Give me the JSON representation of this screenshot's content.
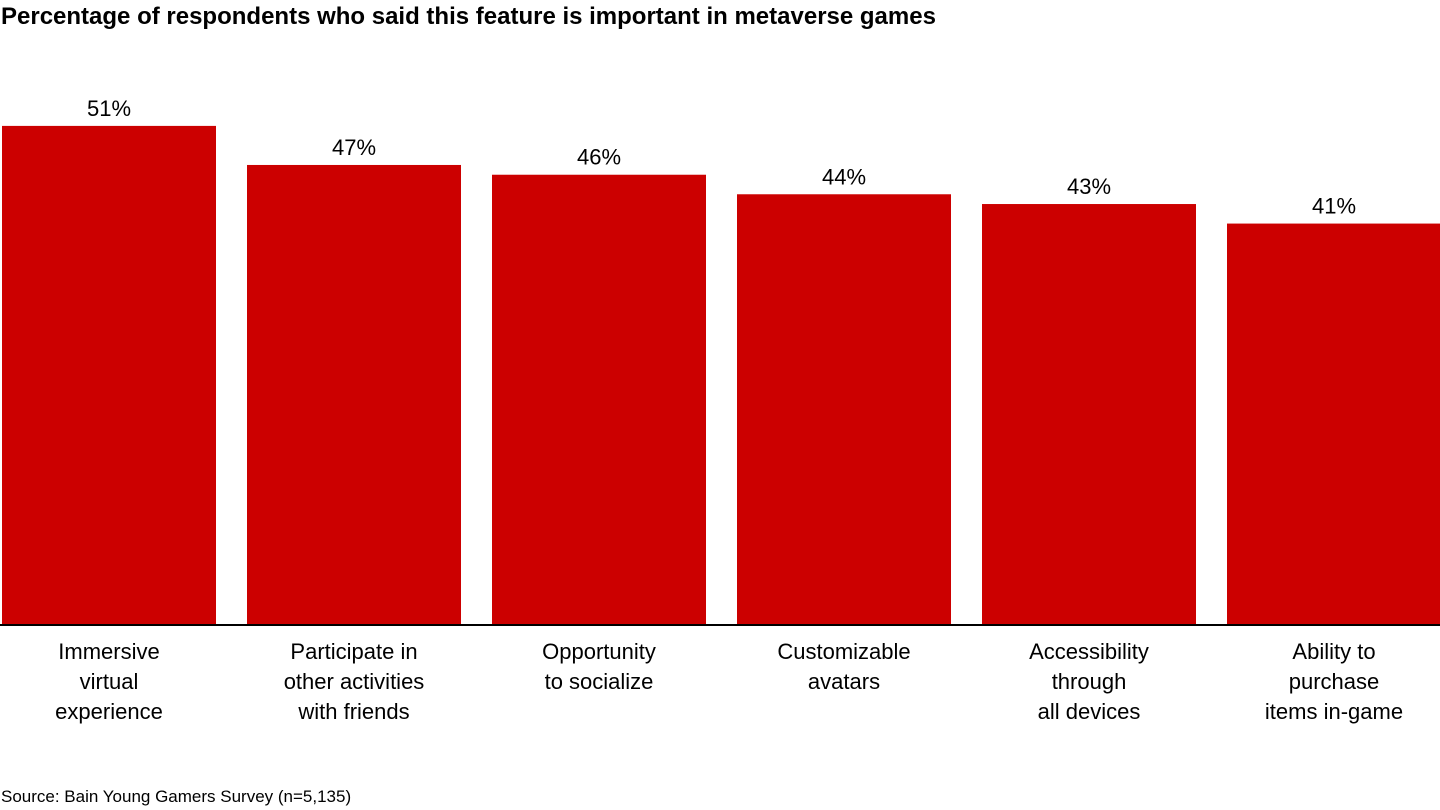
{
  "chart_data": {
    "type": "bar",
    "title": "Percentage of respondents who said this feature is important in metaverse games",
    "categories": [
      [
        "Immersive",
        "virtual",
        "experience"
      ],
      [
        "Participate in",
        "other activities",
        "with friends"
      ],
      [
        "Opportunity",
        "to socialize"
      ],
      [
        "Customizable",
        "avatars"
      ],
      [
        "Accessibility",
        "through",
        "all devices"
      ],
      [
        "Ability to",
        "purchase",
        "items in-game"
      ]
    ],
    "values": [
      51,
      47,
      46,
      44,
      43,
      41
    ],
    "value_suffix": "%",
    "ylim": [
      0,
      60
    ],
    "grid": false,
    "xlabel": "",
    "ylabel": "",
    "bar_color": "#cc0000",
    "source": "Source: Bain Young Gamers Survey (n=5,135)"
  }
}
